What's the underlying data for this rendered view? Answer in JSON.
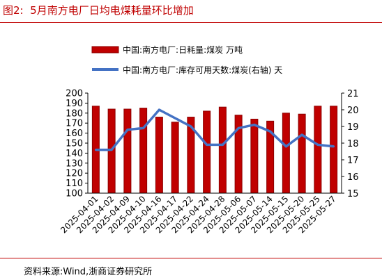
{
  "header": {
    "figure_label": "图2:",
    "title": "5月南方电厂日均电煤耗量环比增加"
  },
  "footer": {
    "source": "资料来源:Wind,浙商证券研究所"
  },
  "colors": {
    "bar_fill": "#c00000",
    "bar_edge": "#8b0000",
    "line": "#4472c4",
    "title_red": "#c00000"
  },
  "chart_data": {
    "type": "bar",
    "categories": [
      "2025-04-01",
      "2025-04-02",
      "2025-04-09",
      "2025-04-10",
      "2025-04-16",
      "2025-04-17",
      "2025-04-22",
      "2025-04-24",
      "2025-04-28",
      "2025-05-06",
      "2025-05-07",
      "2025-05-14",
      "2025-05-15",
      "2025-05-20",
      "2025-05-25",
      "2025-05-27"
    ],
    "series": [
      {
        "name": "中国:南方电厂:日耗量:煤炭 万吨",
        "type": "bar",
        "axis": "left",
        "values": [
          187,
          184,
          184,
          185,
          176,
          171,
          176,
          182,
          186,
          178,
          174,
          172,
          180,
          179,
          187,
          187
        ]
      },
      {
        "name": "中国:南方电厂:库存可用天数:煤炭(右轴) 天",
        "type": "line",
        "axis": "right",
        "values": [
          17.6,
          17.6,
          18.8,
          18.9,
          20.0,
          19.5,
          19.0,
          17.9,
          17.9,
          18.9,
          19.1,
          18.7,
          17.8,
          18.5,
          17.9,
          17.8
        ]
      }
    ],
    "ylim": [
      100,
      200
    ],
    "yticks": [
      100,
      110,
      120,
      130,
      140,
      150,
      160,
      170,
      180,
      190,
      200
    ],
    "y2lim": [
      15,
      21
    ],
    "y2ticks": [
      15,
      16,
      17,
      18,
      19,
      20,
      21
    ],
    "legend_position": "top",
    "grid": false
  }
}
